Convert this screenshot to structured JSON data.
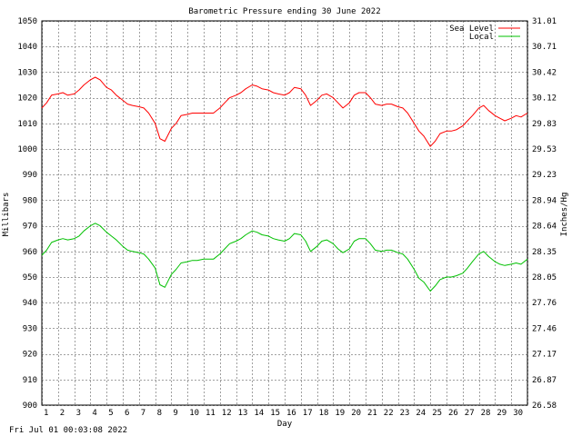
{
  "chart_data": {
    "type": "line",
    "title": "Barometric Pressure ending 30 June 2022",
    "xlabel": "Day",
    "ylabel": "Millibars",
    "ylabel_right": "Inches/Hg",
    "xlim": [
      1,
      31
    ],
    "ylim": [
      900,
      1050
    ],
    "grid": true,
    "legend_position": "top-right",
    "x_ticks": [
      "1",
      "2",
      "3",
      "4",
      "5",
      "6",
      "7",
      "8",
      "9",
      "10",
      "11",
      "12",
      "13",
      "14",
      "15",
      "16",
      "17",
      "18",
      "19",
      "20",
      "21",
      "22",
      "23",
      "24",
      "25",
      "26",
      "27",
      "28",
      "29",
      "30"
    ],
    "y_ticks": [
      "1050",
      "1040",
      "1030",
      "1020",
      "1010",
      "1000",
      "990",
      "980",
      "970",
      "960",
      "950",
      "940",
      "930",
      "920",
      "910",
      "900"
    ],
    "y_ticks_right": [
      "31.01",
      "30.71",
      "30.42",
      "30.12",
      "29.83",
      "29.53",
      "29.23",
      "28.94",
      "28.64",
      "28.35",
      "28.05",
      "27.76",
      "27.46",
      "27.17",
      "26.87",
      "26.58"
    ],
    "series": [
      {
        "name": "Sea Level",
        "color": "#ff0000",
        "x": [
          1.0,
          1.3,
          1.6,
          2.0,
          2.3,
          2.6,
          3.0,
          3.3,
          3.6,
          4.0,
          4.3,
          4.6,
          5.0,
          5.3,
          5.6,
          6.0,
          6.3,
          6.6,
          7.0,
          7.3,
          7.6,
          8.0,
          8.3,
          8.6,
          9.0,
          9.3,
          9.6,
          10.0,
          10.3,
          10.6,
          11.0,
          11.3,
          11.6,
          12.0,
          12.3,
          12.6,
          13.0,
          13.3,
          13.6,
          14.0,
          14.3,
          14.6,
          15.0,
          15.3,
          15.6,
          16.0,
          16.3,
          16.6,
          17.0,
          17.3,
          17.6,
          18.0,
          18.3,
          18.6,
          19.0,
          19.3,
          19.6,
          20.0,
          20.3,
          20.6,
          21.0,
          21.3,
          21.6,
          22.0,
          22.3,
          22.6,
          23.0,
          23.3,
          23.6,
          24.0,
          24.3,
          24.6,
          25.0,
          25.3,
          25.6,
          26.0,
          26.3,
          26.6,
          27.0,
          27.3,
          27.6,
          28.0,
          28.3,
          28.6,
          29.0,
          29.3,
          29.6,
          30.0,
          30.3,
          30.6,
          31.0
        ],
        "values": [
          1016,
          1018,
          1021,
          1021.5,
          1022,
          1021,
          1021.5,
          1023,
          1025,
          1027,
          1028,
          1027,
          1024,
          1023,
          1021,
          1019,
          1017.5,
          1017,
          1016.5,
          1016,
          1014,
          1010,
          1004,
          1003,
          1008,
          1010,
          1013,
          1013.5,
          1014,
          1014,
          1014,
          1014,
          1014,
          1016,
          1018,
          1020,
          1021,
          1022,
          1023.5,
          1025,
          1024.5,
          1023.5,
          1023,
          1022,
          1021.5,
          1021,
          1022,
          1024,
          1023.5,
          1021,
          1017,
          1019,
          1021,
          1021.5,
          1020,
          1018,
          1016,
          1018,
          1021,
          1022,
          1022,
          1020,
          1017.5,
          1017,
          1017.5,
          1017.5,
          1016.5,
          1016,
          1014,
          1010,
          1007,
          1005,
          1001,
          1003,
          1006,
          1007,
          1007,
          1007.5,
          1009,
          1011,
          1013,
          1016,
          1017,
          1015,
          1013,
          1012,
          1011,
          1012,
          1013,
          1012.5,
          1014
        ]
      },
      {
        "name": "Local",
        "color": "#00c000",
        "x": [
          1.0,
          1.3,
          1.6,
          2.0,
          2.3,
          2.6,
          3.0,
          3.3,
          3.6,
          4.0,
          4.3,
          4.6,
          5.0,
          5.3,
          5.6,
          6.0,
          6.3,
          6.6,
          7.0,
          7.3,
          7.6,
          8.0,
          8.3,
          8.6,
          9.0,
          9.3,
          9.6,
          10.0,
          10.3,
          10.6,
          11.0,
          11.3,
          11.6,
          12.0,
          12.3,
          12.6,
          13.0,
          13.3,
          13.6,
          14.0,
          14.3,
          14.6,
          15.0,
          15.3,
          15.6,
          16.0,
          16.3,
          16.6,
          17.0,
          17.3,
          17.6,
          18.0,
          18.3,
          18.6,
          19.0,
          19.3,
          19.6,
          20.0,
          20.3,
          20.6,
          21.0,
          21.3,
          21.6,
          22.0,
          22.3,
          22.6,
          23.0,
          23.3,
          23.6,
          24.0,
          24.3,
          24.6,
          25.0,
          25.3,
          25.6,
          26.0,
          26.3,
          26.6,
          27.0,
          27.3,
          27.6,
          28.0,
          28.3,
          28.6,
          29.0,
          29.3,
          29.6,
          30.0,
          30.3,
          30.6,
          31.0
        ],
        "values": [
          958.5,
          960.5,
          963.5,
          964.5,
          965,
          964.5,
          965,
          966,
          968,
          970,
          971,
          970,
          967.5,
          966,
          964.5,
          962,
          960.5,
          960,
          959.5,
          959,
          957,
          953.5,
          947,
          946,
          951,
          953,
          955.5,
          956,
          956.5,
          956.5,
          957,
          957,
          957,
          959,
          961,
          963,
          964,
          965,
          966.5,
          968,
          967.5,
          966.5,
          966,
          965,
          964.5,
          964,
          965,
          967,
          966.5,
          964,
          960,
          962,
          964,
          964.5,
          963,
          961,
          959.5,
          961,
          964,
          965,
          965,
          963,
          960.5,
          960,
          960.5,
          960.5,
          959.5,
          959,
          957,
          953,
          949.5,
          948,
          944.5,
          946.5,
          949,
          950,
          950,
          950.5,
          951.5,
          953.5,
          956,
          959,
          960,
          958,
          956,
          955,
          954.5,
          955,
          955.5,
          955,
          957
        ]
      }
    ]
  },
  "footer_text": "Fri Jul 01 00:03:08 2022"
}
